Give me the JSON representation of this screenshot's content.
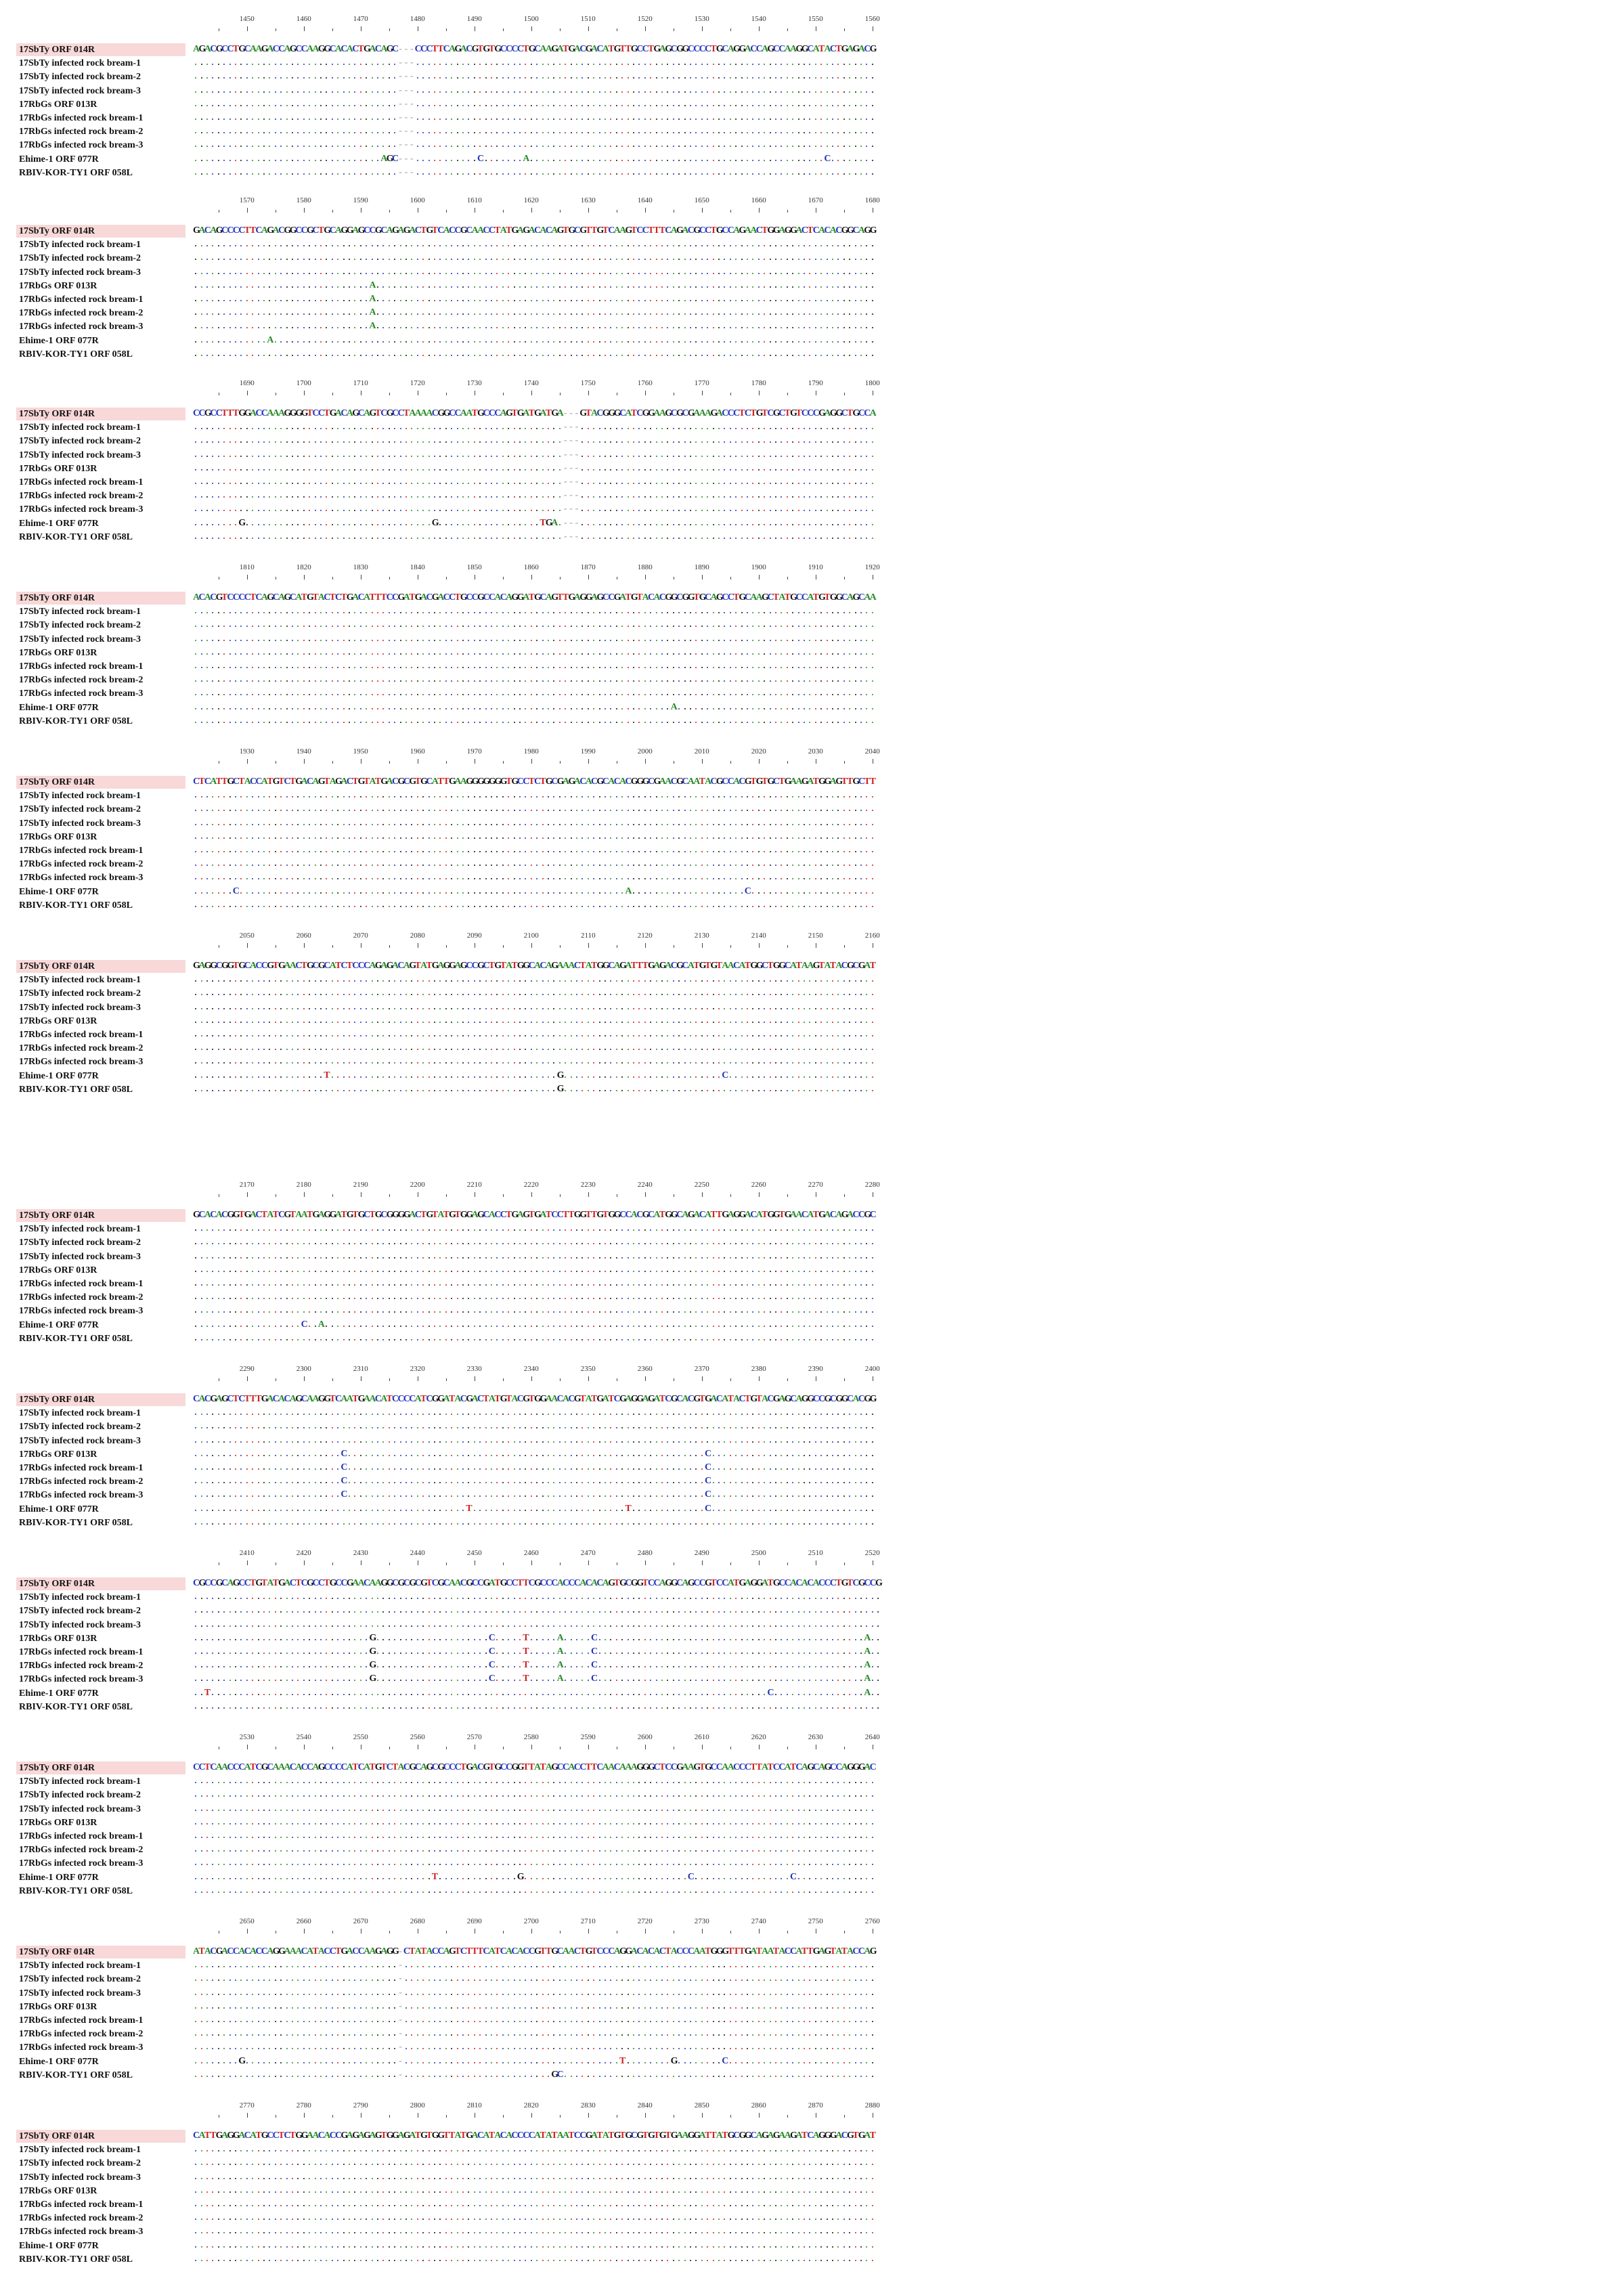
{
  "figure": {
    "colors": {
      "A": "#2a8a2a",
      "C": "#2233bb",
      "G": "#111111",
      "T": "#cc2222",
      "gap": "#aaaaaa",
      "label_ref_bg": "#f8d8d8"
    },
    "row_labels": [
      "17SbTy ORF 014R",
      "17SbTy infected rock bream-1",
      "17SbTy infected rock bream-2",
      "17SbTy infected rock bream-3",
      "17RbGs ORF 013R",
      "17RbGs infected rock bream-1",
      "17RbGs infected rock bream-2",
      "17RbGs infected rock bream-3",
      "Ehime-1 ORF 077R",
      "RBIV-KOR-TY1 ORF 058L"
    ],
    "blocks": [
      {
        "ticks": [
          "1450",
          "1460",
          "1470",
          "1480",
          "1490",
          "1500",
          "1510",
          "1520",
          "1530",
          "1540",
          "1550",
          "1560"
        ],
        "ref": "AGACGCCTGCAAGACCAGCCAAGGCACACTGACAGC---CCCTTCAGACGTGTGCCCCTGCAAGATGACGACATGTTGCCTGAGCGGCCCCTGCAGGACCAGCCAAGGCATACTGAGACG",
        "variants": [
          {
            "row": 8,
            "pos": 33,
            "base": "A"
          },
          {
            "row": 8,
            "pos": 34,
            "base": "G"
          },
          {
            "row": 8,
            "pos": 35,
            "base": "C"
          },
          {
            "row": 8,
            "pos": 50,
            "base": "C"
          },
          {
            "row": 8,
            "pos": 58,
            "base": "A"
          },
          {
            "row": 8,
            "pos": 111,
            "base": "C"
          }
        ]
      },
      {
        "ticks": [
          "1570",
          "1580",
          "1590",
          "1600",
          "1610",
          "1620",
          "1630",
          "1640",
          "1650",
          "1660",
          "1670",
          "1680"
        ],
        "ref": "GACAGCCCCTTCAGACGGCCGCTGCAGGAGCCGCAGAGACTGTCACCGCAACCTATGAGACACAGTGCGTTGTCAAGTCCTTTCAGACGCCTGCCAGAACTGGAGGACTCACACGGCAGG",
        "variants": [
          {
            "row": 4,
            "pos": 31,
            "base": "A"
          },
          {
            "row": 5,
            "pos": 31,
            "base": "A"
          },
          {
            "row": 6,
            "pos": 31,
            "base": "A"
          },
          {
            "row": 7,
            "pos": 31,
            "base": "A"
          },
          {
            "row": 8,
            "pos": 13,
            "base": "A"
          }
        ]
      },
      {
        "ticks": [
          "1690",
          "1700",
          "1710",
          "1720",
          "1730",
          "1740",
          "1750",
          "1760",
          "1770",
          "1780",
          "1790",
          "1800"
        ],
        "ref": "CCGCCTTTGGACCAAAGGGGTCCTGACAGCAGTCGCCTAAAACGGCCAATGCCCAGTGATGATGA---GTACGGGCATCGGAAGCGCGAAAGACCCTCTGTCGCTGTCCCGAGGCTGCCA",
        "variants": [
          {
            "row": 8,
            "pos": 8,
            "base": "G"
          },
          {
            "row": 8,
            "pos": 42,
            "base": "G"
          },
          {
            "row": 8,
            "pos": 61,
            "base": "T"
          },
          {
            "row": 8,
            "pos": 62,
            "base": "G"
          },
          {
            "row": 8,
            "pos": 63,
            "base": "A"
          }
        ]
      },
      {
        "ticks": [
          "1810",
          "1820",
          "1830",
          "1840",
          "1850",
          "1860",
          "1870",
          "1880",
          "1890",
          "1900",
          "1910",
          "1920"
        ],
        "ref": "ACACGTCCCCTCAGCAGCATGTACTCTGACATTTCCGATGACGACCTGCCGCCACAGGATGCAGTTGAGGAGCCGATGTACACGGCGGTGCAGCCTGCAAGCTATGCCATGTGGCAGCAA",
        "variants": [
          {
            "row": 8,
            "pos": 84,
            "base": "A"
          }
        ]
      },
      {
        "ticks": [
          "1930",
          "1940",
          "1950",
          "1960",
          "1970",
          "1980",
          "1990",
          "2000",
          "2010",
          "2020",
          "2030",
          "2040"
        ],
        "ref": "CTCATTGCTACCATGTCTGACAGTAGACTGTATGACGCGTGCATTGAAGGGGGGGTGCCTCTGCGAGACACGCACACGGGCGAACGCAATACGCCACGTGTGCTGAAGATGGAGTTGCTT",
        "variants": [
          {
            "row": 8,
            "pos": 7,
            "base": "C"
          },
          {
            "row": 8,
            "pos": 76,
            "base": "A"
          },
          {
            "row": 8,
            "pos": 97,
            "base": "C"
          }
        ]
      },
      {
        "ticks": [
          "2050",
          "2060",
          "2070",
          "2080",
          "2090",
          "2100",
          "2110",
          "2120",
          "2130",
          "2140",
          "2150",
          "2160"
        ],
        "ref": "GAGGCGGTGCACCGTGAACTGCGCATCTCCCAGAGACAGTATGAGGAGCCGCTGTATGGCACAGAAACTATGGCAGATTTGAGACGCATGTGTAACATGGCTGGCATAAGTATACGCGAT",
        "variants": [
          {
            "row": 8,
            "pos": 23,
            "base": "T"
          },
          {
            "row": 8,
            "pos": 64,
            "base": "G"
          },
          {
            "row": 8,
            "pos": 93,
            "base": "C"
          },
          {
            "row": 9,
            "pos": 64,
            "base": "G"
          }
        ]
      },
      {
        "ticks": [
          "2170",
          "2180",
          "2190",
          "2200",
          "2210",
          "2220",
          "2230",
          "2240",
          "2250",
          "2260",
          "2270",
          "2280"
        ],
        "ref": "GCACACGGTGACTATCGTAATGAGGATGTGCTGCGGGGACTGTATGTGGAGCACCTGAGTGATCCTTGGTTGTGGCCACGCATGGCAGACATTGAGGACATGGTGAACATGACAGACCGC",
        "variants": [
          {
            "row": 8,
            "pos": 19,
            "base": "C"
          },
          {
            "row": 8,
            "pos": 22,
            "base": "A"
          }
        ]
      },
      {
        "ticks": [
          "2290",
          "2300",
          "2310",
          "2320",
          "2330",
          "2340",
          "2350",
          "2360",
          "2370",
          "2380",
          "2390",
          "2400"
        ],
        "ref": "CACGAGCTCTTTGACACAGCAAGGTCAATGAACATCCCCATCGGATACGACTATGTACGTGGAACACGTATGATCGAGGAGATCGCACGTGACATACTGTACGAGCAGGCCGCGGCACGG",
        "variants": [
          {
            "row": 4,
            "pos": 26,
            "base": "C"
          },
          {
            "row": 5,
            "pos": 26,
            "base": "C"
          },
          {
            "row": 6,
            "pos": 26,
            "base": "C"
          },
          {
            "row": 7,
            "pos": 26,
            "base": "C"
          },
          {
            "row": 4,
            "pos": 90,
            "base": "C"
          },
          {
            "row": 5,
            "pos": 90,
            "base": "C"
          },
          {
            "row": 6,
            "pos": 90,
            "base": "C"
          },
          {
            "row": 7,
            "pos": 90,
            "base": "C"
          },
          {
            "row": 8,
            "pos": 48,
            "base": "T"
          },
          {
            "row": 8,
            "pos": 76,
            "base": "T"
          },
          {
            "row": 8,
            "pos": 90,
            "base": "C"
          }
        ]
      },
      {
        "ticks": [
          "2410",
          "2420",
          "2430",
          "2440",
          "2450",
          "2460",
          "2470",
          "2480",
          "2490",
          "2500",
          "2510",
          "2520"
        ],
        "ref": "CGCCGCAGCCTGTATGACTCGCCTGCCGAACAAGGCGCGCGTCGCAACGCCGATGCCTTCGCCCACCCACACAGTGCGGTCCAGGCAGCCGTCCATGAGGATGCCACACACCCTGTCGCCG",
        "variants": [
          {
            "row": 4,
            "pos": 31,
            "base": "G"
          },
          {
            "row": 5,
            "pos": 31,
            "base": "G"
          },
          {
            "row": 6,
            "pos": 31,
            "base": "G"
          },
          {
            "row": 7,
            "pos": 31,
            "base": "G"
          },
          {
            "row": 4,
            "pos": 52,
            "base": "C"
          },
          {
            "row": 5,
            "pos": 52,
            "base": "C"
          },
          {
            "row": 6,
            "pos": 52,
            "base": "C"
          },
          {
            "row": 7,
            "pos": 52,
            "base": "C"
          },
          {
            "row": 4,
            "pos": 58,
            "base": "T"
          },
          {
            "row": 5,
            "pos": 58,
            "base": "T"
          },
          {
            "row": 6,
            "pos": 58,
            "base": "T"
          },
          {
            "row": 7,
            "pos": 58,
            "base": "T"
          },
          {
            "row": 4,
            "pos": 64,
            "base": "A"
          },
          {
            "row": 5,
            "pos": 64,
            "base": "A"
          },
          {
            "row": 6,
            "pos": 64,
            "base": "A"
          },
          {
            "row": 7,
            "pos": 64,
            "base": "A"
          },
          {
            "row": 4,
            "pos": 70,
            "base": "C"
          },
          {
            "row": 5,
            "pos": 70,
            "base": "C"
          },
          {
            "row": 6,
            "pos": 70,
            "base": "C"
          },
          {
            "row": 7,
            "pos": 70,
            "base": "C"
          },
          {
            "row": 4,
            "pos": 118,
            "base": "A"
          },
          {
            "row": 5,
            "pos": 118,
            "base": "A"
          },
          {
            "row": 6,
            "pos": 118,
            "base": "A"
          },
          {
            "row": 7,
            "pos": 118,
            "base": "A"
          },
          {
            "row": 8,
            "pos": 2,
            "base": "T"
          },
          {
            "row": 8,
            "pos": 101,
            "base": "C"
          },
          {
            "row": 8,
            "pos": 118,
            "base": "A"
          }
        ]
      },
      {
        "ticks": [
          "2530",
          "2540",
          "2550",
          "2560",
          "2570",
          "2580",
          "2590",
          "2600",
          "2610",
          "2620",
          "2630",
          "2640"
        ],
        "ref": "CCTCAACCCATCGCAAACACCAGCCCCATCATGTCTACGCAGCGCCCTGACGTGCCGGTTATAGCCACCTTCAACAAAGGGCTCCGAAGTGCCAACCCTTATCCATCAGCAGCCAGGGAC",
        "variants": [
          {
            "row": 8,
            "pos": 42,
            "base": "T"
          },
          {
            "row": 8,
            "pos": 57,
            "base": "G"
          },
          {
            "row": 8,
            "pos": 87,
            "base": "C"
          },
          {
            "row": 8,
            "pos": 105,
            "base": "C"
          }
        ]
      },
      {
        "ticks": [
          "2650",
          "2660",
          "2670",
          "2680",
          "2690",
          "2700",
          "2710",
          "2720",
          "2730",
          "2740",
          "2750",
          "2760"
        ],
        "ref": "ATACGACCACACCAGGAAACATACCTGACCAAGAGG-CTATACCAGTCTTTCATCACACCGTTGCAACTGTCCCAGGACACACTACCCAATGGGTTTGATAATACCATTGAGTATACCAG",
        "variants": [
          {
            "row": 8,
            "pos": 8,
            "base": "G"
          },
          {
            "row": 8,
            "pos": 75,
            "base": "T"
          },
          {
            "row": 8,
            "pos": 84,
            "base": "G"
          },
          {
            "row": 8,
            "pos": 93,
            "base": "C"
          },
          {
            "row": 9,
            "pos": 63,
            "base": "G"
          },
          {
            "row": 9,
            "pos": 64,
            "base": "C"
          }
        ]
      },
      {
        "ticks": [
          "2770",
          "2780",
          "2790",
          "2800",
          "2810",
          "2820",
          "2830",
          "2840",
          "2850",
          "2860",
          "2870",
          "2880"
        ],
        "ref": "CATTGAGGACATGCCTCTGGAACACCGAGAGAGTGGAGATGTGGTTATGACATACACCCCATATAATCCGATATGTGCGTGTGTGAAGGATTATGCGGCAGAGAAGATCAGGGACGTGAT",
        "variants": []
      }
    ]
  }
}
